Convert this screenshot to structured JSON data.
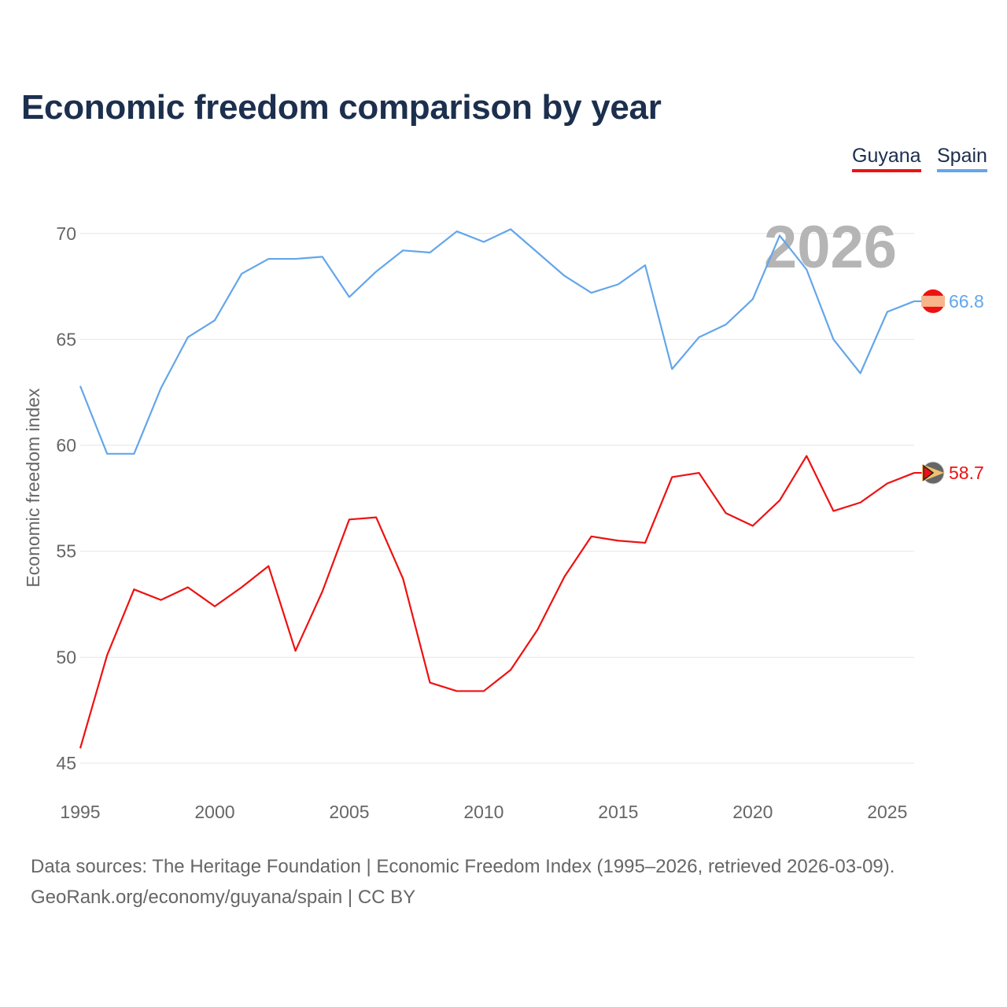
{
  "chart_data": {
    "type": "line",
    "title": "Economic freedom comparison by year",
    "xlabel": "",
    "ylabel": "Economic freedom index",
    "xlim": [
      1995,
      2026
    ],
    "ylim": [
      45,
      72
    ],
    "yticks": [
      45,
      50,
      55,
      60,
      65,
      70
    ],
    "xticks": [
      1995,
      2000,
      2005,
      2010,
      2015,
      2020,
      2025
    ],
    "grid": true,
    "legend_position": "top-right",
    "year_watermark": "2026",
    "x": [
      1995,
      1996,
      1997,
      1998,
      1999,
      2000,
      2001,
      2002,
      2003,
      2004,
      2005,
      2006,
      2007,
      2008,
      2009,
      2010,
      2011,
      2012,
      2013,
      2014,
      2015,
      2016,
      2017,
      2018,
      2019,
      2020,
      2021,
      2022,
      2023,
      2024,
      2025,
      2026
    ],
    "series": [
      {
        "name": "Guyana",
        "color": "#ee1111",
        "end_label": "58.7",
        "values": [
          45.7,
          50.1,
          53.2,
          52.7,
          53.3,
          52.4,
          53.3,
          54.3,
          50.3,
          53.1,
          56.5,
          56.6,
          53.7,
          48.8,
          48.4,
          48.4,
          49.4,
          51.3,
          53.8,
          55.7,
          55.5,
          55.4,
          58.5,
          58.7,
          56.8,
          56.2,
          57.4,
          59.5,
          56.9,
          57.3,
          58.2,
          58.7
        ]
      },
      {
        "name": "Spain",
        "color": "#63a6ea",
        "end_label": "66.8",
        "values": [
          62.8,
          59.6,
          59.6,
          62.7,
          65.1,
          65.9,
          68.1,
          68.8,
          68.8,
          68.9,
          67.0,
          68.2,
          69.2,
          69.1,
          70.1,
          69.6,
          70.2,
          69.1,
          68.0,
          67.2,
          67.6,
          68.5,
          63.6,
          65.1,
          65.7,
          66.9,
          69.9,
          68.3,
          65.0,
          63.4,
          66.3,
          66.8
        ]
      }
    ]
  },
  "footer": {
    "line1": "Data sources: The Heritage Foundation | Economic Freedom Index (1995–2026, retrieved 2026-03-09).",
    "line2": "GeoRank.org/economy/guyana/spain | CC BY"
  }
}
